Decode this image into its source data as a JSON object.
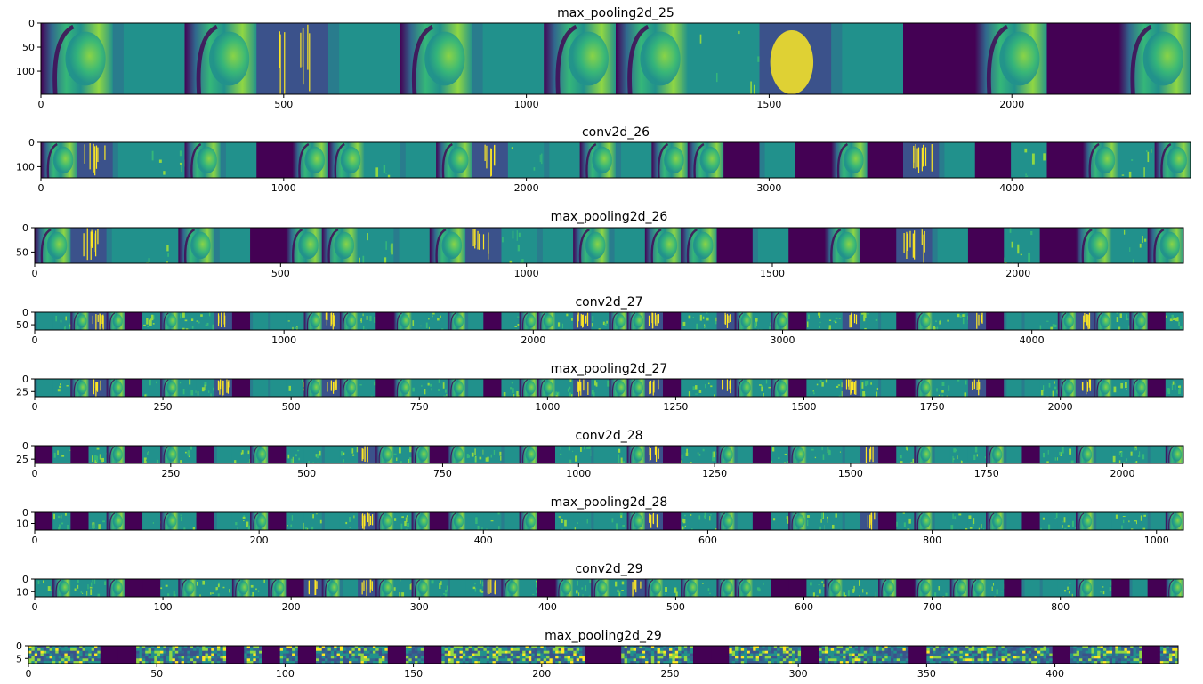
{
  "colors": {
    "dead": "#440154",
    "low": "#3b528b",
    "mid_low": "#31688e",
    "mid": "#21918c",
    "mid_high": "#35b779",
    "high": "#90d743",
    "peak": "#fde725"
  },
  "chart_data": [
    {
      "type": "heatmap",
      "title": "max_pooling2d_25",
      "xlim": [
        0,
        2368
      ],
      "ylim": [
        148,
        0
      ],
      "xticks": [
        0,
        500,
        1000,
        1500,
        2000
      ],
      "yticks": [
        0,
        50,
        100
      ],
      "pattern": [
        "portrait",
        "flat",
        "portrait",
        "edges",
        "flat",
        "portrait",
        "flat",
        "portrait",
        "portrait",
        "sparse",
        "bright",
        "flat",
        "dead",
        "portrait",
        "dead",
        "portrait"
      ]
    },
    {
      "type": "heatmap",
      "title": "conv2d_26",
      "xlim": [
        0,
        4736
      ],
      "ylim": [
        146,
        0
      ],
      "xticks": [
        0,
        1000,
        2000,
        3000,
        4000
      ],
      "yticks": [
        0,
        100
      ],
      "pattern": [
        "portrait",
        "edges",
        "flat",
        "sparse",
        "portrait",
        "flat",
        "dead",
        "portrait",
        "portrait",
        "sparse",
        "flat",
        "portrait",
        "edges",
        "sparse",
        "flat",
        "portrait",
        "flat",
        "portrait",
        "portrait",
        "dead",
        "flat",
        "dead",
        "portrait",
        "dead",
        "edges",
        "flat",
        "dead",
        "sparse",
        "dead",
        "portrait",
        "sparse",
        "portrait"
      ]
    },
    {
      "type": "heatmap",
      "title": "max_pooling2d_26",
      "xlim": [
        0,
        2336
      ],
      "ylim": [
        73,
        0
      ],
      "xticks": [
        0,
        500,
        1000,
        1500,
        2000
      ],
      "yticks": [
        0,
        50
      ],
      "pattern": [
        "portrait",
        "edges",
        "flat",
        "sparse",
        "portrait",
        "flat",
        "dead",
        "portrait",
        "portrait",
        "sparse",
        "flat",
        "portrait",
        "edges",
        "sparse",
        "flat",
        "portrait",
        "flat",
        "portrait",
        "portrait",
        "dead",
        "flat",
        "dead",
        "portrait",
        "dead",
        "edges",
        "flat",
        "dead",
        "sparse",
        "dead",
        "portrait",
        "sparse",
        "portrait"
      ]
    },
    {
      "type": "heatmap",
      "title": "conv2d_27",
      "xlim": [
        0,
        4608
      ],
      "ylim": [
        71,
        0
      ],
      "xticks": [
        0,
        1000,
        2000,
        3000,
        4000
      ],
      "yticks": [
        0,
        50
      ],
      "pattern": [
        "flat",
        "sparse",
        "portrait",
        "edges",
        "portrait",
        "dead",
        "sparse",
        "portrait",
        "sparse",
        "sparse",
        "edges",
        "dead",
        "flat",
        "flat",
        "sparse",
        "portrait",
        "edges",
        "portrait",
        "sparse",
        "dead",
        "portrait",
        "sparse",
        "sparse",
        "portrait",
        "flat",
        "dead",
        "sparse",
        "portrait",
        "portrait",
        "sparse",
        "edges",
        "sparse",
        "portrait",
        "portrait",
        "edges",
        "dead",
        "sparse",
        "sparse",
        "edges",
        "portrait",
        "sparse",
        "portrait",
        "dead",
        "sparse",
        "sparse",
        "edges",
        "sparse",
        "flat",
        "dead",
        "portrait",
        "sparse",
        "sparse",
        "edges",
        "dead",
        "flat",
        "flat",
        "sparse",
        "portrait",
        "edges",
        "portrait",
        "sparse",
        "portrait",
        "dead",
        "sparse"
      ]
    },
    {
      "type": "heatmap",
      "title": "max_pooling2d_27",
      "xlim": [
        0,
        2240
      ],
      "ylim": [
        35,
        0
      ],
      "xticks": [
        0,
        250,
        500,
        750,
        1000,
        1250,
        1500,
        1750,
        2000
      ],
      "yticks": [
        0,
        25
      ],
      "pattern": [
        "flat",
        "sparse",
        "portrait",
        "edges",
        "portrait",
        "dead",
        "sparse",
        "portrait",
        "sparse",
        "sparse",
        "edges",
        "dead",
        "flat",
        "flat",
        "sparse",
        "portrait",
        "edges",
        "portrait",
        "sparse",
        "dead",
        "portrait",
        "sparse",
        "sparse",
        "portrait",
        "flat",
        "dead",
        "sparse",
        "portrait",
        "portrait",
        "sparse",
        "edges",
        "sparse",
        "portrait",
        "portrait",
        "edges",
        "dead",
        "sparse",
        "sparse",
        "edges",
        "portrait",
        "sparse",
        "portrait",
        "dead",
        "sparse",
        "sparse",
        "edges",
        "sparse",
        "flat",
        "dead",
        "portrait",
        "sparse",
        "sparse",
        "edges",
        "dead",
        "flat",
        "flat",
        "sparse",
        "portrait",
        "edges",
        "portrait",
        "sparse",
        "portrait",
        "dead",
        "sparse"
      ]
    },
    {
      "type": "heatmap",
      "title": "conv2d_28",
      "xlim": [
        0,
        2112
      ],
      "ylim": [
        33,
        0
      ],
      "xticks": [
        0,
        250,
        500,
        750,
        1000,
        1250,
        1500,
        1750,
        2000
      ],
      "yticks": [
        0,
        25
      ],
      "pattern": [
        "dead",
        "sparse",
        "dead",
        "sparse",
        "portrait",
        "dead",
        "sparse",
        "portrait",
        "sparse",
        "dead",
        "flat",
        "sparse",
        "portrait",
        "dead",
        "sparse",
        "sparse",
        "flat",
        "sparse",
        "edges",
        "portrait",
        "sparse",
        "portrait",
        "dead",
        "portrait",
        "sparse",
        "sparse",
        "flat",
        "portrait",
        "dead",
        "sparse",
        "sparse",
        "flat",
        "sparse",
        "portrait",
        "edges",
        "dead",
        "sparse",
        "sparse",
        "portrait",
        "flat",
        "dead",
        "sparse",
        "portrait",
        "sparse",
        "sparse",
        "flat",
        "edges",
        "dead",
        "sparse",
        "portrait",
        "flat",
        "sparse",
        "sparse",
        "portrait",
        "flat",
        "dead",
        "sparse",
        "sparse",
        "portrait",
        "flat",
        "sparse",
        "sparse",
        "flat",
        "portrait"
      ]
    },
    {
      "type": "heatmap",
      "title": "max_pooling2d_28",
      "xlim": [
        0,
        1024
      ],
      "ylim": [
        16,
        0
      ],
      "xticks": [
        0,
        200,
        400,
        600,
        800,
        1000
      ],
      "yticks": [
        0,
        10
      ],
      "pattern": [
        "dead",
        "sparse",
        "dead",
        "sparse",
        "portrait",
        "dead",
        "sparse",
        "portrait",
        "sparse",
        "dead",
        "flat",
        "sparse",
        "portrait",
        "dead",
        "sparse",
        "sparse",
        "flat",
        "sparse",
        "edges",
        "portrait",
        "sparse",
        "portrait",
        "dead",
        "portrait",
        "sparse",
        "sparse",
        "flat",
        "portrait",
        "dead",
        "sparse",
        "sparse",
        "flat",
        "sparse",
        "portrait",
        "edges",
        "dead",
        "sparse",
        "sparse",
        "portrait",
        "flat",
        "dead",
        "sparse",
        "portrait",
        "sparse",
        "sparse",
        "flat",
        "edges",
        "dead",
        "sparse",
        "portrait",
        "flat",
        "sparse",
        "sparse",
        "portrait",
        "flat",
        "dead",
        "sparse",
        "sparse",
        "portrait",
        "flat",
        "sparse",
        "sparse",
        "flat",
        "portrait"
      ]
    },
    {
      "type": "heatmap",
      "title": "conv2d_29",
      "xlim": [
        0,
        896
      ],
      "ylim": [
        14,
        0
      ],
      "xticks": [
        0,
        100,
        200,
        300,
        400,
        500,
        600,
        700,
        800
      ],
      "yticks": [
        0,
        10
      ],
      "pattern": [
        "sparse",
        "portrait",
        "sparse",
        "sparse",
        "portrait",
        "dead",
        "dead",
        "sparse",
        "portrait",
        "sparse",
        "sparse",
        "portrait",
        "sparse",
        "portrait",
        "dead",
        "edges",
        "portrait",
        "flat",
        "edges",
        "portrait",
        "sparse",
        "portrait",
        "sparse",
        "flat",
        "sparse",
        "edges",
        "portrait",
        "sparse",
        "dead",
        "portrait",
        "sparse",
        "portrait",
        "sparse",
        "edges",
        "portrait",
        "sparse",
        "portrait",
        "sparse",
        "portrait",
        "portrait",
        "sparse",
        "dead",
        "dead",
        "sparse",
        "portrait",
        "sparse",
        "sparse",
        "portrait",
        "dead",
        "portrait",
        "sparse",
        "portrait",
        "portrait",
        "sparse",
        "dead",
        "flat",
        "flat",
        "sparse",
        "portrait",
        "sparse",
        "dead",
        "flat",
        "dead",
        "portrait"
      ]
    },
    {
      "type": "heatmap",
      "title": "max_pooling2d_29",
      "xlim": [
        0,
        448
      ],
      "ylim": [
        7,
        0
      ],
      "xticks": [
        0,
        50,
        100,
        150,
        200,
        250,
        300,
        350,
        400
      ],
      "yticks": [
        0,
        5
      ],
      "pattern": [
        "blocky",
        "blocky",
        "blocky",
        "blocky",
        "dead",
        "dead",
        "blocky",
        "blocky",
        "blocky",
        "blocky",
        "blocky",
        "dead",
        "blocky",
        "dead",
        "blocky",
        "dead",
        "blocky",
        "blocky",
        "blocky",
        "blocky",
        "dead",
        "blocky",
        "dead",
        "blocky",
        "blocky",
        "blocky",
        "blocky",
        "blocky",
        "blocky",
        "blocky",
        "blocky",
        "dead",
        "dead",
        "blocky",
        "blocky",
        "blocky",
        "blocky",
        "dead",
        "dead",
        "blocky",
        "blocky",
        "blocky",
        "blocky",
        "dead",
        "blocky",
        "blocky",
        "blocky",
        "blocky",
        "blocky",
        "dead",
        "blocky",
        "blocky",
        "blocky",
        "blocky",
        "blocky",
        "blocky",
        "blocky",
        "dead",
        "blocky",
        "blocky",
        "blocky",
        "blocky",
        "dead",
        "blocky"
      ]
    }
  ]
}
